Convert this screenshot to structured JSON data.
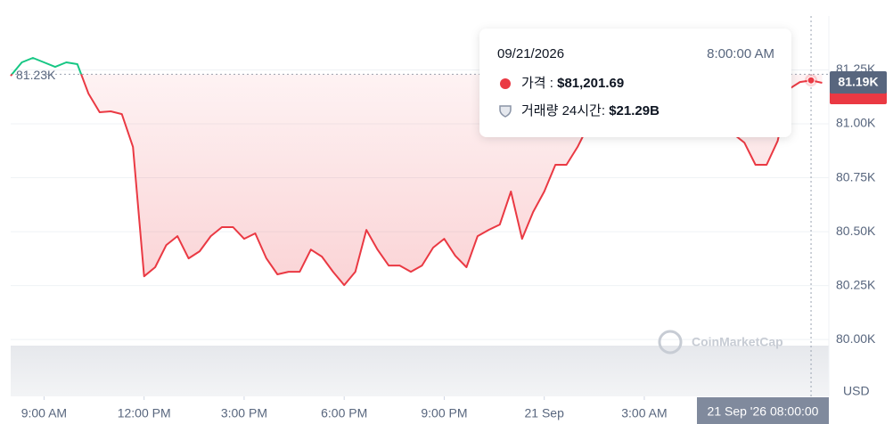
{
  "chart_data": {
    "type": "line",
    "x": [
      "2026-09-20T08:00",
      "2026-09-20T08:20",
      "2026-09-20T08:40",
      "2026-09-20T09:00",
      "2026-09-20T09:20",
      "2026-09-20T09:40",
      "2026-09-20T10:00",
      "2026-09-20T10:20",
      "2026-09-20T10:40",
      "2026-09-20T11:00",
      "2026-09-20T11:20",
      "2026-09-20T11:40",
      "2026-09-20T12:00",
      "2026-09-20T12:20",
      "2026-09-20T12:40",
      "2026-09-20T13:00",
      "2026-09-20T13:20",
      "2026-09-20T13:40",
      "2026-09-20T14:00",
      "2026-09-20T14:20",
      "2026-09-20T14:40",
      "2026-09-20T15:00",
      "2026-09-20T15:20",
      "2026-09-20T15:40",
      "2026-09-20T16:00",
      "2026-09-20T16:20",
      "2026-09-20T16:40",
      "2026-09-20T17:00",
      "2026-09-20T17:20",
      "2026-09-20T17:40",
      "2026-09-20T18:00",
      "2026-09-20T18:20",
      "2026-09-20T18:40",
      "2026-09-20T19:00",
      "2026-09-20T19:20",
      "2026-09-20T19:40",
      "2026-09-20T20:00",
      "2026-09-20T20:20",
      "2026-09-20T20:40",
      "2026-09-20T21:00",
      "2026-09-20T21:20",
      "2026-09-20T21:40",
      "2026-09-20T22:00",
      "2026-09-20T22:20",
      "2026-09-20T22:40",
      "2026-09-20T23:00",
      "2026-09-20T23:20",
      "2026-09-20T23:40",
      "2026-09-21T00:00",
      "2026-09-21T00:20",
      "2026-09-21T00:40",
      "2026-09-21T01:00",
      "2026-09-21T01:20",
      "2026-09-21T01:40",
      "2026-09-21T02:00",
      "2026-09-21T02:20",
      "2026-09-21T02:40",
      "2026-09-21T03:00",
      "2026-09-21T03:20",
      "2026-09-21T03:40",
      "2026-09-21T04:00",
      "2026-09-21T04:20",
      "2026-09-21T04:40",
      "2026-09-21T05:00",
      "2026-09-21T05:20",
      "2026-09-21T05:40",
      "2026-09-21T06:00",
      "2026-09-21T06:20",
      "2026-09-21T06:40",
      "2026-09-21T07:00",
      "2026-09-21T07:20",
      "2026-09-21T07:40",
      "2026-09-21T08:00",
      "2026-09-21T08:20"
    ],
    "values": [
      81223,
      81285,
      81306,
      81285,
      81264,
      81285,
      81277,
      81140,
      81054,
      81058,
      81045,
      80893,
      80293,
      80335,
      80438,
      80479,
      80376,
      80409,
      80479,
      80521,
      80521,
      80467,
      80492,
      80376,
      80302,
      80314,
      80314,
      80417,
      80384,
      80314,
      80252,
      80314,
      80508,
      80417,
      80343,
      80343,
      80314,
      80343,
      80426,
      80467,
      80388,
      80335,
      80479,
      80508,
      80533,
      80686,
      80467,
      80591,
      80686,
      80810,
      80810,
      80893,
      80996,
      81058,
      81099,
      81120,
      81128,
      81120,
      81099,
      81078,
      81070,
      81058,
      81037,
      81016,
      80996,
      80954,
      80913,
      80810,
      80810,
      80921,
      81161,
      81194,
      81201.69,
      81190
    ],
    "up_color": "#16c784",
    "down_color": "#ea3943",
    "xlim": [
      "2026-09-20T08:00",
      "2026-09-21T08:32"
    ],
    "xticks": [
      {
        "value": "2026-09-20T09:00",
        "label": "9:00 AM"
      },
      {
        "value": "2026-09-20T12:00",
        "label": "12:00 PM"
      },
      {
        "value": "2026-09-20T15:00",
        "label": "3:00 PM"
      },
      {
        "value": "2026-09-20T18:00",
        "label": "6:00 PM"
      },
      {
        "value": "2026-09-20T21:00",
        "label": "9:00 PM"
      },
      {
        "value": "2026-09-21T00:00",
        "label": "21 Sep"
      },
      {
        "value": "2026-09-21T03:00",
        "label": "3:00 AM"
      }
    ],
    "ylim": [
      79736,
      81500
    ],
    "yticks": [
      {
        "value": 80000,
        "label": "80.00K"
      },
      {
        "value": 80250,
        "label": "80.25K"
      },
      {
        "value": 80500,
        "label": "80.50K"
      },
      {
        "value": 80750,
        "label": "80.75K"
      },
      {
        "value": 81000,
        "label": "81.00K"
      },
      {
        "value": 81250,
        "label": "81.25K"
      }
    ],
    "grid": true,
    "unit": "USD",
    "reference_line": {
      "value": 81230,
      "label": "81.23K"
    },
    "current_price": {
      "value": 81190,
      "label": "81.19K"
    },
    "hover": {
      "x": "2026-09-21T08:00",
      "label": "21 Sep '26 08:00:00"
    },
    "tooltip": {
      "date": "09/21/2026",
      "time": "8:00:00 AM",
      "price_label": "가격 : ",
      "price": "$81,201.69",
      "volume_label": "거래량 24시간: ",
      "volume": "$21.29B"
    },
    "watermark": "CoinMarketCap"
  }
}
